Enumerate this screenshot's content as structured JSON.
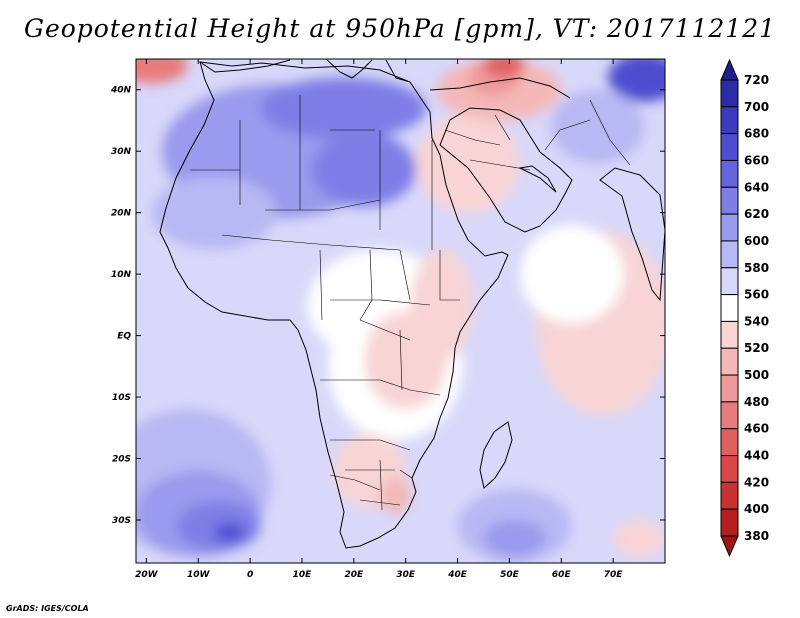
{
  "title": "Geopotential Height at 950hPa [gpm], VT: 2017112121",
  "credit": "GrADS: IGES/COLA",
  "lat_labels": [
    "40N",
    "30N",
    "20N",
    "10N",
    "EQ",
    "10S",
    "20S",
    "30S"
  ],
  "lat_values": [
    40,
    30,
    20,
    10,
    0,
    -10,
    -20,
    -30
  ],
  "lon_labels": [
    "20W",
    "10W",
    "0",
    "10E",
    "20E",
    "30E",
    "40E",
    "50E",
    "60E",
    "70E"
  ],
  "lon_values": [
    -20,
    -10,
    0,
    10,
    20,
    30,
    40,
    50,
    60,
    70
  ],
  "extent": {
    "lon_min": -22,
    "lon_max": 80,
    "lat_min": -37,
    "lat_max": 45
  },
  "colorbar": {
    "labels": [
      "720",
      "700",
      "680",
      "660",
      "640",
      "620",
      "600",
      "580",
      "560",
      "540",
      "520",
      "500",
      "480",
      "460",
      "440",
      "420",
      "400",
      "380"
    ],
    "colors": [
      "#1e1e8c",
      "#2c2ca8",
      "#3b3bbe",
      "#4e4ed0",
      "#6464dc",
      "#7e7ee6",
      "#9a9aee",
      "#b8b8f4",
      "#d8d8fa",
      "#ffffff",
      "#f8d4d4",
      "#f4b8b8",
      "#ee9a9a",
      "#e87c7c",
      "#e06060",
      "#d84646",
      "#c83232",
      "#b41e1e",
      "#a01414"
    ]
  },
  "field": {
    "background_color": "#d8d8fa",
    "blobs": [
      {
        "lon": 5,
        "lat": 30,
        "rlon": 22,
        "rlat": 11,
        "color": "#9a9aee"
      },
      {
        "lon": 22,
        "lat": 27,
        "rlon": 10,
        "rlat": 6,
        "color": "#7e7ee6"
      },
      {
        "lon": 18,
        "lat": 37,
        "rlon": 16,
        "rlat": 5,
        "color": "#7e7ee6"
      },
      {
        "lon": -7,
        "lat": 20,
        "rlon": 12,
        "rlat": 6,
        "color": "#b8b8f4"
      },
      {
        "lon": 25,
        "lat": 5,
        "rlon": 14,
        "rlat": 9,
        "color": "#ffffff"
      },
      {
        "lon": 28,
        "lat": -5,
        "rlon": 13,
        "rlat": 12,
        "color": "#ffffff"
      },
      {
        "lon": 37,
        "lat": 5,
        "rlon": 6,
        "rlat": 9,
        "color": "#f8d4d4"
      },
      {
        "lon": 30,
        "lat": -4,
        "rlon": 8,
        "rlat": 8,
        "color": "#f8d4d4"
      },
      {
        "lon": 23,
        "lat": -22,
        "rlon": 7,
        "rlat": 6,
        "color": "#f8d4d4"
      },
      {
        "lon": 28,
        "lat": -26,
        "rlon": 3,
        "rlat": 3,
        "color": "#f4b8b8"
      },
      {
        "lon": 42,
        "lat": 28,
        "rlon": 10,
        "rlat": 8,
        "color": "#f8d4d4"
      },
      {
        "lon": 68,
        "lat": 2,
        "rlon": 13,
        "rlat": 15,
        "color": "#f8d4d4"
      },
      {
        "lon": 62,
        "lat": 10,
        "rlon": 10,
        "rlat": 8,
        "color": "#ffffff"
      },
      {
        "lon": 48,
        "lat": 40,
        "rlon": 12,
        "rlat": 5,
        "color": "#f4b8b8"
      },
      {
        "lon": 47,
        "lat": 42,
        "rlon": 5,
        "rlat": 3,
        "color": "#ee9a9a"
      },
      {
        "lon": 49,
        "lat": 44,
        "rlon": 4,
        "rlat": 2,
        "color": "#e06060"
      },
      {
        "lon": -19,
        "lat": 44,
        "rlon": 7,
        "rlat": 3,
        "color": "#e87c7c"
      },
      {
        "lon": 76,
        "lat": 42,
        "rlon": 7,
        "rlat": 4,
        "color": "#4e4ed0"
      },
      {
        "lon": 67,
        "lat": 34,
        "rlon": 9,
        "rlat": 6,
        "color": "#b8b8f4"
      },
      {
        "lon": -12,
        "lat": -24,
        "rlon": 16,
        "rlat": 12,
        "color": "#b8b8f4"
      },
      {
        "lon": -10,
        "lat": -29,
        "rlon": 12,
        "rlat": 7,
        "color": "#9a9aee"
      },
      {
        "lon": -6,
        "lat": -31,
        "rlon": 8,
        "rlat": 4,
        "color": "#7e7ee6"
      },
      {
        "lon": -4,
        "lat": -32,
        "rlon": 3,
        "rlat": 1.5,
        "color": "#4e4ed0"
      },
      {
        "lon": 51,
        "lat": -31,
        "rlon": 11,
        "rlat": 6,
        "color": "#b8b8f4"
      },
      {
        "lon": 51,
        "lat": -33,
        "rlon": 6,
        "rlat": 3,
        "color": "#9a9aee"
      },
      {
        "lon": 75,
        "lat": -33,
        "rlon": 5,
        "rlat": 3,
        "color": "#f8d4d4"
      }
    ]
  }
}
